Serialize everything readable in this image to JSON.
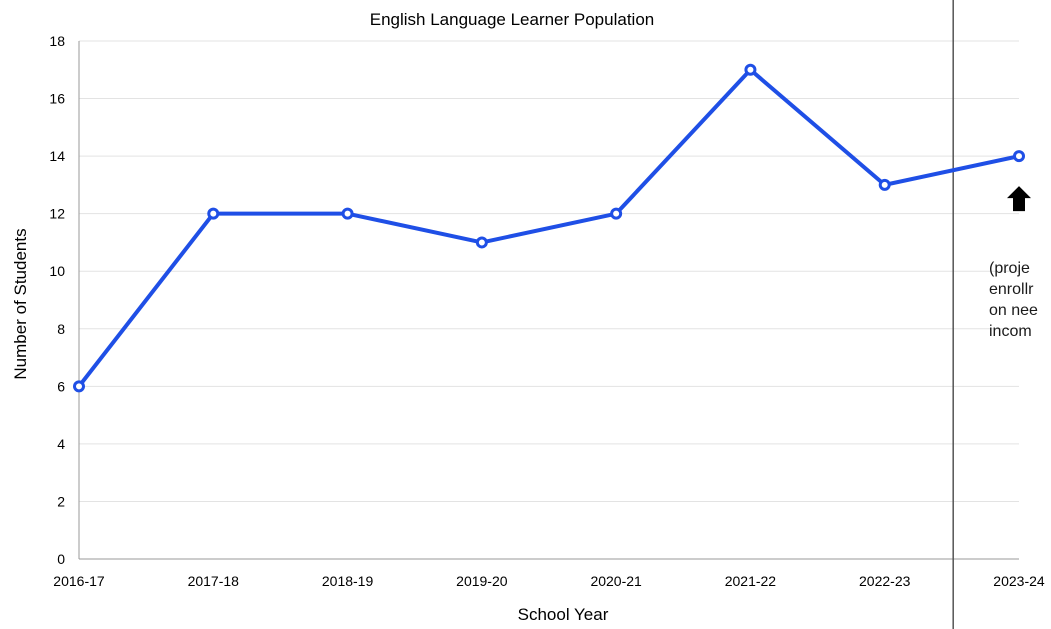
{
  "chart_data": {
    "type": "line",
    "title": "English Language Learner Population",
    "xlabel": "School Year",
    "ylabel": "Number of Students",
    "categories": [
      "2016-17",
      "2017-18",
      "2018-19",
      "2019-20",
      "2020-21",
      "2021-22",
      "2022-23",
      "2023-24"
    ],
    "series": [
      {
        "values": [
          6,
          12,
          12,
          11,
          12,
          17,
          13,
          14
        ]
      }
    ],
    "ylim": [
      0,
      18
    ],
    "yticks": [
      0,
      2,
      4,
      6,
      8,
      10,
      12,
      14,
      16,
      18
    ],
    "grid": true,
    "legend": "none",
    "colors": {
      "line": "#1f4fe6",
      "grid": "#e3e3e3",
      "divider": "#555555",
      "arrow": "#000000"
    },
    "annotation": {
      "lines": [
        "(proje",
        "enrollr",
        "on nee",
        "incom"
      ]
    }
  }
}
